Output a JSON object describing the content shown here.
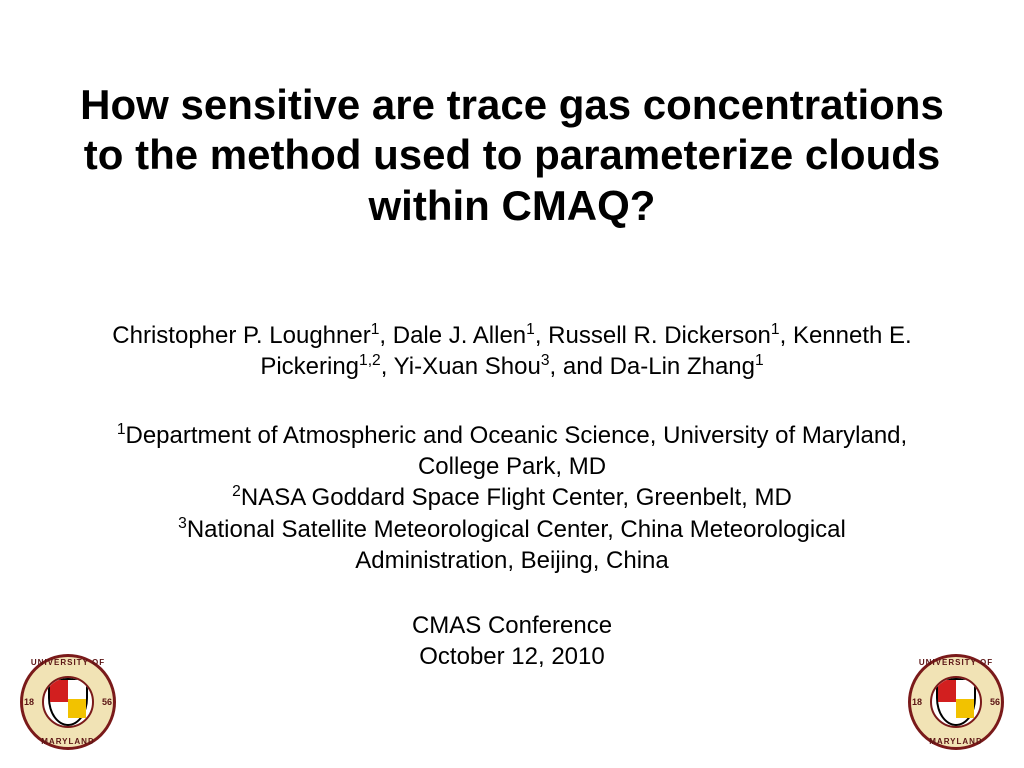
{
  "title": "How sensitive are trace gas concentrations to the method used to parameterize clouds within CMAQ?",
  "authors": [
    {
      "name": "Christopher P. Loughner",
      "sup": "1",
      "suffix": ", "
    },
    {
      "name": "Dale J. Allen",
      "sup": "1",
      "suffix": ", "
    },
    {
      "name": "Russell R. Dickerson",
      "sup": "1",
      "suffix": ", "
    },
    {
      "name": "Kenneth E. Pickering",
      "sup": "1,2",
      "suffix": ", "
    },
    {
      "name": "Yi-Xuan Shou",
      "sup": "3",
      "suffix": ", and "
    },
    {
      "name": "Da-Lin Zhang",
      "sup": "1",
      "suffix": ""
    }
  ],
  "affiliations": [
    {
      "sup": "1",
      "text": "Department of Atmospheric and Oceanic Science, University of Maryland, College Park, MD"
    },
    {
      "sup": "2",
      "text": "NASA Goddard Space Flight Center, Greenbelt, MD"
    },
    {
      "sup": "3",
      "text": "National Satellite Meteorological Center, China Meteorological Administration, Beijing, China"
    }
  ],
  "conference": {
    "name": "CMAS Conference",
    "date": "October 12, 2010"
  },
  "seal": {
    "top": "UNIVERSITY OF",
    "bottom": "MARYLAND",
    "year_left": "18",
    "year_right": "56"
  },
  "style": {
    "background": "#ffffff",
    "title_fontsize": 42,
    "title_weight": "bold",
    "body_fontsize": 24,
    "seal_border": "#7a1a1a",
    "seal_fill": "#f1e3b5",
    "shield_red": "#d21f1f",
    "shield_gold": "#f2c200"
  }
}
